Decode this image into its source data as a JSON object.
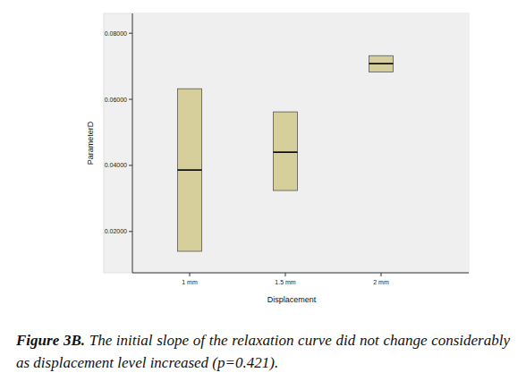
{
  "chart_data": {
    "type": "box",
    "x_label": "Displacement",
    "y_label": "ParameterD",
    "categories": [
      "1 mm",
      "1.5 mm",
      "2 mm"
    ],
    "q1": [
      0.014,
      0.0324,
      0.0683
    ],
    "median": [
      0.0386,
      0.044,
      0.0708
    ],
    "q3": [
      0.0632,
      0.0562,
      0.0732
    ],
    "color": "#d6cf9c",
    "ylim": [
      0.0075,
      0.086
    ],
    "yticks": [
      {
        "value": 0.02,
        "label": "0.02000"
      },
      {
        "value": 0.04,
        "label": "0.04000"
      },
      {
        "value": 0.06,
        "label": "0.06000"
      },
      {
        "value": 0.08,
        "label": "0.08000"
      }
    ],
    "grid": false,
    "caption_label": "Figure 3B.",
    "caption": "The initial slope of the relaxation curve did not change considerably as displacement level increased (p=0.421)."
  }
}
